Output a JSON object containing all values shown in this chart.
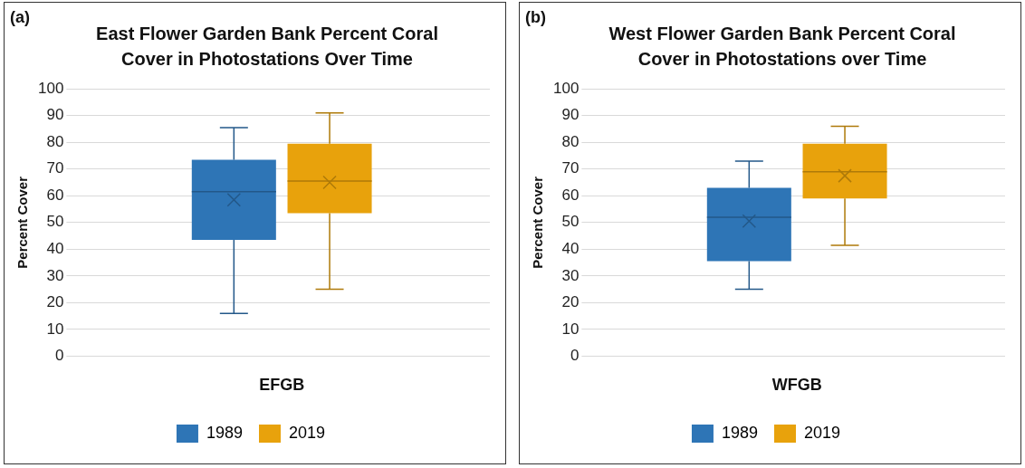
{
  "chart_data": [
    {
      "type": "box",
      "title": "East Flower Garden Bank Percent Coral Cover in Photostations Over Time",
      "ylabel": "Percent Cover",
      "categories": [
        "EFGB"
      ],
      "ylim": [
        0,
        100
      ],
      "yticks": [
        0,
        10,
        20,
        30,
        40,
        50,
        60,
        70,
        80,
        90,
        100
      ],
      "grid": "y",
      "legend": "bottom",
      "annotations": [
        "(a)"
      ],
      "series": [
        {
          "name": "1989",
          "color": "#2e75b6",
          "boxes": [
            {
              "low": 16,
              "q1": 43.5,
              "median": 61.5,
              "q3": 73.5,
              "high": 85.5,
              "mean": 58.5
            }
          ]
        },
        {
          "name": "2019",
          "color": "#e8a20c",
          "boxes": [
            {
              "low": 25,
              "q1": 53.5,
              "median": 65.5,
              "q3": 79.5,
              "high": 91,
              "mean": 65
            }
          ]
        }
      ]
    },
    {
      "type": "box",
      "title": "West Flower Garden Bank Percent Coral Cover in Photostations over Time",
      "ylabel": "Percent Cover",
      "categories": [
        "WFGB"
      ],
      "ylim": [
        0,
        100
      ],
      "yticks": [
        0,
        10,
        20,
        30,
        40,
        50,
        60,
        70,
        80,
        90,
        100
      ],
      "grid": "y",
      "legend": "bottom",
      "annotations": [
        "(b)"
      ],
      "series": [
        {
          "name": "1989",
          "color": "#2e75b6",
          "boxes": [
            {
              "low": 25,
              "q1": 35.5,
              "median": 52,
              "q3": 63,
              "high": 73,
              "mean": 50.5
            }
          ]
        },
        {
          "name": "2019",
          "color": "#e8a20c",
          "boxes": [
            {
              "low": 41.5,
              "q1": 59,
              "median": 69,
              "q3": 79.5,
              "high": 86,
              "mean": 67.5
            }
          ]
        }
      ]
    }
  ]
}
